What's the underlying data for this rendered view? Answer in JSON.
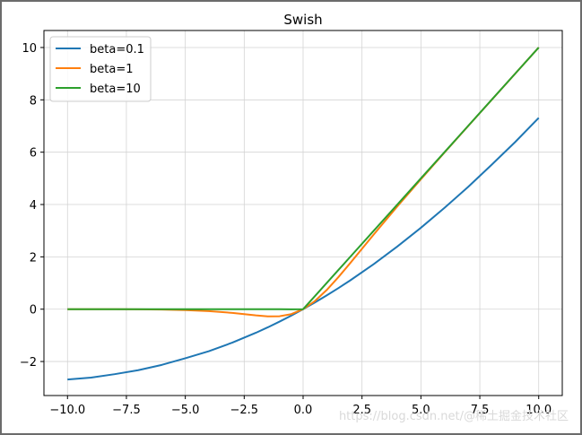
{
  "chart_data": {
    "type": "line",
    "title": "Swish",
    "xlabel": "",
    "ylabel": "",
    "xlim": [
      -11,
      11
    ],
    "ylim": [
      -3.3,
      10.65
    ],
    "grid": true,
    "legend_position": "top-left",
    "x_ticks": [
      -10,
      -7.5,
      -5,
      -2.5,
      0,
      2.5,
      5,
      7.5,
      10
    ],
    "x_tick_labels": [
      "−10.0",
      "−7.5",
      "−5.0",
      "−2.5",
      "0.0",
      "2.5",
      "5.0",
      "7.5",
      "10.0"
    ],
    "y_ticks": [
      -2,
      0,
      2,
      4,
      6,
      8,
      10
    ],
    "y_tick_labels": [
      "−2",
      "0",
      "2",
      "4",
      "6",
      "8",
      "10"
    ],
    "x": [
      -10,
      -9,
      -8,
      -7,
      -6,
      -5,
      -4,
      -3,
      -2,
      -1.5,
      -1,
      -0.5,
      0,
      0.5,
      1,
      1.5,
      2,
      3,
      4,
      5,
      6,
      7,
      8,
      9,
      10
    ],
    "series": [
      {
        "name": "beta=0.1",
        "color": "#1f77b4",
        "values": [
          -2.689,
          -2.613,
          -2.484,
          -2.332,
          -2.129,
          -1.876,
          -1.605,
          -1.277,
          -0.9,
          -0.694,
          -0.475,
          -0.244,
          0.0,
          0.256,
          0.525,
          0.806,
          1.1,
          1.723,
          2.395,
          3.112,
          3.871,
          4.668,
          5.516,
          6.387,
          7.311
        ]
      },
      {
        "name": "beta=1",
        "color": "#ff7f0e",
        "values": [
          -0.000454,
          -0.00111,
          -0.00268,
          -0.00638,
          -0.0148,
          -0.0335,
          -0.0719,
          -0.142,
          -0.238,
          -0.274,
          -0.269,
          -0.189,
          0.0,
          0.311,
          0.731,
          1.226,
          1.762,
          2.858,
          3.928,
          4.967,
          5.985,
          6.994,
          7.997,
          8.999,
          10.0
        ]
      },
      {
        "name": "beta=10",
        "color": "#2ca02c",
        "values": [
          0.0,
          0.0,
          0.0,
          0.0,
          0.0,
          0.0,
          0.0,
          0.0,
          0.0,
          0.0,
          -0.00045,
          -0.00335,
          0.0,
          0.497,
          1.0,
          1.5,
          2.0,
          3.0,
          4.0,
          5.0,
          6.0,
          7.0,
          8.0,
          9.0,
          10.0
        ]
      }
    ]
  },
  "watermark": "https://blog.csdn.net/@稀土掘金技术社区"
}
